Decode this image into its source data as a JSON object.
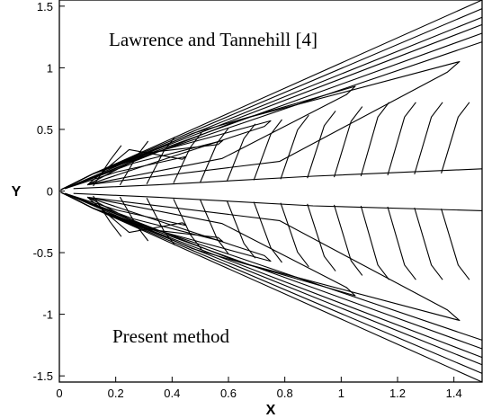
{
  "chart_data": {
    "type": "contour",
    "xlabel": "X",
    "ylabel": "Y",
    "xlim": [
      0,
      1.5
    ],
    "ylim": [
      -1.55,
      1.55
    ],
    "x_ticks": [
      "0",
      "0.2",
      "0.4",
      "0.6",
      "0.8",
      "1",
      "1.2",
      "1.4"
    ],
    "y_ticks": [
      "1.5",
      "1",
      "0.5",
      "0",
      "-0.5",
      "-1",
      "-1.5"
    ],
    "annotations": [
      "Lawrence and Tannehill [4]",
      "Present method"
    ],
    "grid": false,
    "description_series": [
      {
        "region": "upper",
        "values": [
          1.55,
          1.48,
          1.41,
          1.35,
          1.28,
          1.21,
          1.15
        ]
      },
      {
        "region": "lower",
        "values": [
          -1.55,
          -1.48,
          -1.41,
          -1.35,
          -1.28,
          -1.21,
          -1.15
        ]
      }
    ],
    "inner_tips": [
      {
        "x": 1.42,
        "y": 1.05
      },
      {
        "x": 1.05,
        "y": 0.85
      },
      {
        "x": 0.75,
        "y": 0.57
      },
      {
        "x": 0.58,
        "y": 0.41
      },
      {
        "x": 0.45,
        "y": 0.28
      }
    ]
  }
}
